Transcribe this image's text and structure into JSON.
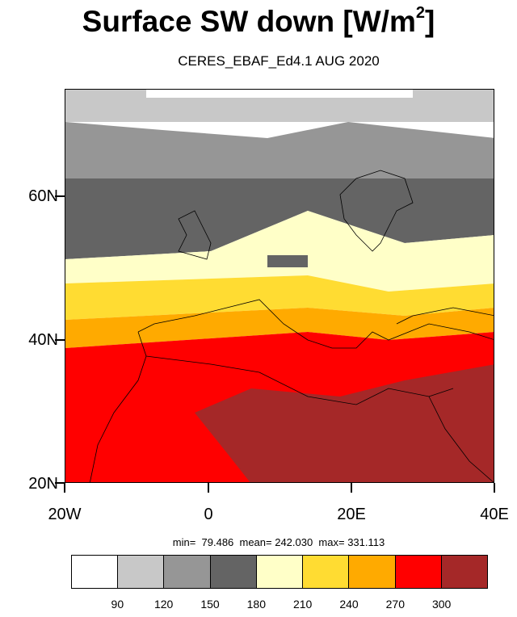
{
  "title": {
    "main": "Surface SW down [W/m",
    "sup": "2",
    "close": "]"
  },
  "subtitle": "CERES_EBAF_Ed4.1 AUG 2020",
  "stats": "min=  79.486  mean= 242.030  max= 331.113",
  "axes": {
    "lat_labels": [
      "60N",
      "40N",
      "20N"
    ],
    "lon_labels": [
      "20W",
      "0",
      "20E",
      "40E"
    ],
    "lat_range": [
      20,
      75
    ],
    "lon_range": [
      -20,
      40
    ]
  },
  "colorbar": {
    "labels": [
      "90",
      "120",
      "150",
      "180",
      "210",
      "240",
      "270",
      "300"
    ],
    "colors": [
      "#ffffff",
      "#c8c8c8",
      "#969696",
      "#646464",
      "#ffffc8",
      "#ffdc32",
      "#ffaa00",
      "#ff0000",
      "#a52828"
    ]
  },
  "chart_data": {
    "type": "heatmap",
    "title": "Surface SW down [W/m2]",
    "subtitle": "CERES_EBAF_Ed4.1 AUG 2020",
    "variable_units": "W/m2",
    "x_range": [
      -20,
      40
    ],
    "y_range": [
      20,
      75
    ],
    "levels": [
      90,
      120,
      150,
      180,
      210,
      240,
      270,
      300
    ],
    "min": 79.486,
    "mean": 242.03,
    "max": 331.113
  }
}
